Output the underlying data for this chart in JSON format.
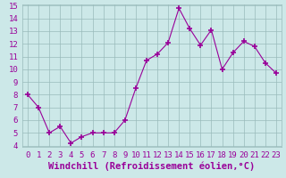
{
  "x": [
    0,
    1,
    2,
    3,
    4,
    5,
    6,
    7,
    8,
    9,
    10,
    11,
    12,
    13,
    14,
    15,
    16,
    17,
    18,
    19,
    20,
    21,
    22,
    23
  ],
  "y": [
    8,
    7,
    5,
    5.5,
    4.2,
    4.7,
    5,
    5,
    5,
    6,
    8.5,
    10.7,
    11.2,
    12.1,
    14.8,
    13.2,
    11.9,
    13.1,
    10,
    11.3,
    12.2,
    11.8,
    10.5,
    9.7
  ],
  "line_color": "#990099",
  "marker_color": "#990099",
  "bg_color": "#cce8e8",
  "grid_color": "#99bbbb",
  "axis_label_color": "#990099",
  "tick_label_color": "#990099",
  "spine_color": "#99bbbb",
  "xlabel": "Windchill (Refroidissement éolien,°C)",
  "ylim_min": 3.9,
  "ylim_max": 15.1,
  "xlim_min": -0.5,
  "xlim_max": 23.5,
  "yticks": [
    4,
    5,
    6,
    7,
    8,
    9,
    10,
    11,
    12,
    13,
    14,
    15
  ],
  "xticks": [
    0,
    1,
    2,
    3,
    4,
    5,
    6,
    7,
    8,
    9,
    10,
    11,
    12,
    13,
    14,
    15,
    16,
    17,
    18,
    19,
    20,
    21,
    22,
    23
  ],
  "tick_fontsize": 6.5,
  "xlabel_fontsize": 7.5
}
